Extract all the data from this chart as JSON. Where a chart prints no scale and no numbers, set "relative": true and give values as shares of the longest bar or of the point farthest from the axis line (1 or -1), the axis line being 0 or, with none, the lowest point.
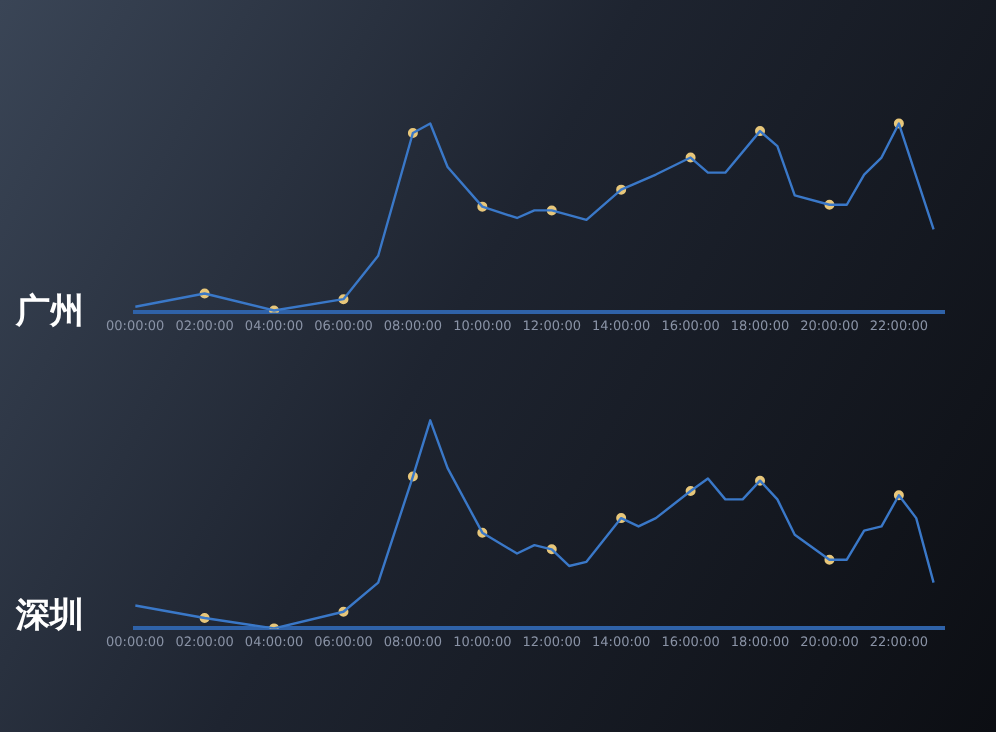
{
  "chart_data": [
    {
      "type": "line",
      "title": "广州",
      "relative": true,
      "marker": "circle",
      "line_style": "solid",
      "grid": false,
      "legend": false,
      "x": [
        0,
        2,
        4,
        6,
        7,
        8,
        8.5,
        9,
        10,
        11,
        11.5,
        12,
        13,
        14,
        15,
        16,
        16.5,
        17,
        18,
        18.5,
        19,
        20,
        20.5,
        21,
        21.5,
        22,
        23
      ],
      "series": [
        {
          "color": "#3a78c8",
          "marker": "none",
          "values": [
            0.03,
            0.1,
            0.01,
            0.07,
            0.3,
            0.95,
            1.0,
            0.77,
            0.56,
            0.5,
            0.54,
            0.54,
            0.49,
            0.65,
            0.73,
            0.82,
            0.74,
            0.74,
            0.96,
            0.88,
            0.62,
            0.57,
            0.57,
            0.73,
            0.82,
            1.0,
            0.44
          ]
        },
        {
          "type": "scatter",
          "color": "#e8c77a",
          "x": [
            2,
            4,
            6,
            8,
            10,
            12,
            14,
            16,
            18,
            20,
            22
          ],
          "values": [
            0.1,
            0.01,
            0.07,
            0.95,
            0.56,
            0.54,
            0.65,
            0.82,
            0.96,
            0.57,
            1.0
          ]
        }
      ],
      "xlim": [
        0,
        23.3
      ],
      "xticks": [
        {
          "value": 0,
          "label": "00:00:00"
        },
        {
          "value": 2,
          "label": "02:00:00"
        },
        {
          "value": 4,
          "label": "04:00:00"
        },
        {
          "value": 6,
          "label": "06:00:00"
        },
        {
          "value": 8,
          "label": "08:00:00"
        },
        {
          "value": 10,
          "label": "10:00:00"
        },
        {
          "value": 12,
          "label": "12:00:00"
        },
        {
          "value": 14,
          "label": "14:00:00"
        },
        {
          "value": 16,
          "label": "16:00:00"
        },
        {
          "value": 18,
          "label": "18:00:00"
        },
        {
          "value": 20,
          "label": "20:00:00"
        },
        {
          "value": 22,
          "label": "22:00:00"
        }
      ],
      "tick_labels": "x"
    },
    {
      "type": "line",
      "title": "深圳",
      "relative": true,
      "marker": "circle",
      "line_style": "solid",
      "grid": false,
      "legend": false,
      "x": [
        0,
        2,
        4,
        6,
        7,
        8,
        8.5,
        9,
        10,
        11,
        11.5,
        12,
        12.5,
        13,
        14,
        14.5,
        15,
        16,
        16.5,
        17,
        17.5,
        18,
        18.5,
        19,
        20,
        20.5,
        21,
        21.5,
        22,
        22.5,
        23
      ],
      "series": [
        {
          "color": "#3a78c8",
          "marker": "none",
          "values": [
            0.11,
            0.05,
            0.0,
            0.08,
            0.22,
            0.73,
            1.0,
            0.77,
            0.46,
            0.36,
            0.4,
            0.38,
            0.3,
            0.32,
            0.53,
            0.49,
            0.53,
            0.66,
            0.72,
            0.62,
            0.62,
            0.71,
            0.62,
            0.45,
            0.33,
            0.33,
            0.47,
            0.49,
            0.64,
            0.53,
            0.22
          ]
        },
        {
          "type": "scatter",
          "color": "#e8c77a",
          "x": [
            2,
            4,
            6,
            8,
            10,
            12,
            14,
            16,
            18,
            20,
            22
          ],
          "values": [
            0.05,
            0.0,
            0.08,
            0.73,
            0.46,
            0.38,
            0.53,
            0.66,
            0.71,
            0.33,
            0.64
          ]
        }
      ],
      "xlim": [
        0,
        23.3
      ],
      "xticks": [
        {
          "value": 0,
          "label": "00:00:00"
        },
        {
          "value": 2,
          "label": "02:00:00"
        },
        {
          "value": 4,
          "label": "04:00:00"
        },
        {
          "value": 6,
          "label": "06:00:00"
        },
        {
          "value": 8,
          "label": "08:00:00"
        },
        {
          "value": 10,
          "label": "10:00:00"
        },
        {
          "value": 12,
          "label": "12:00:00"
        },
        {
          "value": 14,
          "label": "14:00:00"
        },
        {
          "value": 16,
          "label": "16:00:00"
        },
        {
          "value": 18,
          "label": "18:00:00"
        },
        {
          "value": 20,
          "label": "20:00:00"
        },
        {
          "value": 22,
          "label": "22:00:00"
        }
      ],
      "tick_labels": "x"
    }
  ]
}
